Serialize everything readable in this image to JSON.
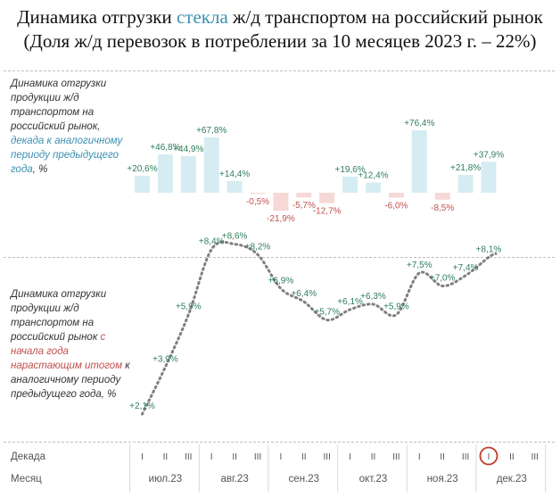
{
  "title": {
    "line1_before": "Динамика отгрузки ",
    "line1_accent": "стекла",
    "line1_after": " ж/д транспортом на российский рынок",
    "line2": "(Доля ж/д перевозок в потреблении за 10 месяцев 2023 г. – 22%)"
  },
  "desc1": {
    "part1": "Динамика отгрузки продукции ж/д транспортом на российский рынок,",
    "part2": "декада к аналогичному периоду предыдущего года",
    "part3": ", %"
  },
  "desc2": {
    "part1": "Динамика отгрузки продукции ж/д транспортом на российский рынок",
    "part2": "с начала года нарастающим итогом",
    "part3": "к аналогичному периоду предыдущего года, %"
  },
  "axis": {
    "decade_label": "Декада",
    "month_label": "Месяц",
    "decades": [
      "I",
      "II",
      "III",
      "I",
      "II",
      "III",
      "I",
      "II",
      "III",
      "I",
      "II",
      "III",
      "I",
      "II",
      "III",
      "I",
      "II",
      "III"
    ],
    "months": [
      "июл.23",
      "авг.23",
      "сен.23",
      "окт.23",
      "ноя.23",
      "дек.23"
    ],
    "highlight_decade_index": 15
  },
  "colors": {
    "positive_bar": "#d6ecf3",
    "negative_bar": "#f6d8d7",
    "positive_label": "#2e7d5b",
    "negative_label": "#c0504d",
    "line": "#7f7f7f",
    "highlight_circle": "#c0392b"
  },
  "chart_data": [
    {
      "type": "bar",
      "categories": [
        "I июл.23",
        "II июл.23",
        "III июл.23",
        "I авг.23",
        "II авг.23",
        "III авг.23",
        "I сен.23",
        "II сен.23",
        "III сен.23",
        "I окт.23",
        "II окт.23",
        "III окт.23",
        "I ноя.23",
        "II ноя.23",
        "III ноя.23",
        "I дек.23"
      ],
      "values": [
        20.6,
        46.8,
        44.9,
        67.8,
        14.4,
        -0.5,
        -21.9,
        -5.7,
        -12.7,
        19.6,
        12.4,
        -6.0,
        76.4,
        -8.5,
        21.8,
        37.9
      ],
      "labels": [
        "+20,6%",
        "+46,8%",
        "+44,9%",
        "+67,8%",
        "+14,4%",
        "-0,5%",
        "-21,9%",
        "-5,7%",
        "-12,7%",
        "+19,6%",
        "+12,4%",
        "-6,0%",
        "+76,4%",
        "-8,5%",
        "+21,8%",
        "+37,9%"
      ],
      "ylabel": ""
    },
    {
      "type": "line",
      "style": "dotted",
      "categories": [
        "I июл.23",
        "II июл.23",
        "III июл.23",
        "I авг.23",
        "II авг.23",
        "III авг.23",
        "I сен.23",
        "II сен.23",
        "III сен.23",
        "I окт.23",
        "II окт.23",
        "III окт.23",
        "I ноя.23",
        "II ноя.23",
        "III ноя.23",
        "I дек.23"
      ],
      "values": [
        2.1,
        3.9,
        5.9,
        8.4,
        8.6,
        8.2,
        6.9,
        6.4,
        5.7,
        6.1,
        6.3,
        5.9,
        7.5,
        7.0,
        7.4,
        8.1
      ],
      "labels": [
        "+2,1%",
        "+3,9%",
        "+5,9%",
        "+8,4%",
        "+8,6%",
        "+8,2%",
        "+6,9%",
        "+6,4%",
        "+5,7%",
        "+6,1%",
        "+6,3%",
        "+5,9%",
        "+7,5%",
        "+7,0%",
        "+7,4%",
        "+8,1%"
      ],
      "ylabel": ""
    }
  ]
}
